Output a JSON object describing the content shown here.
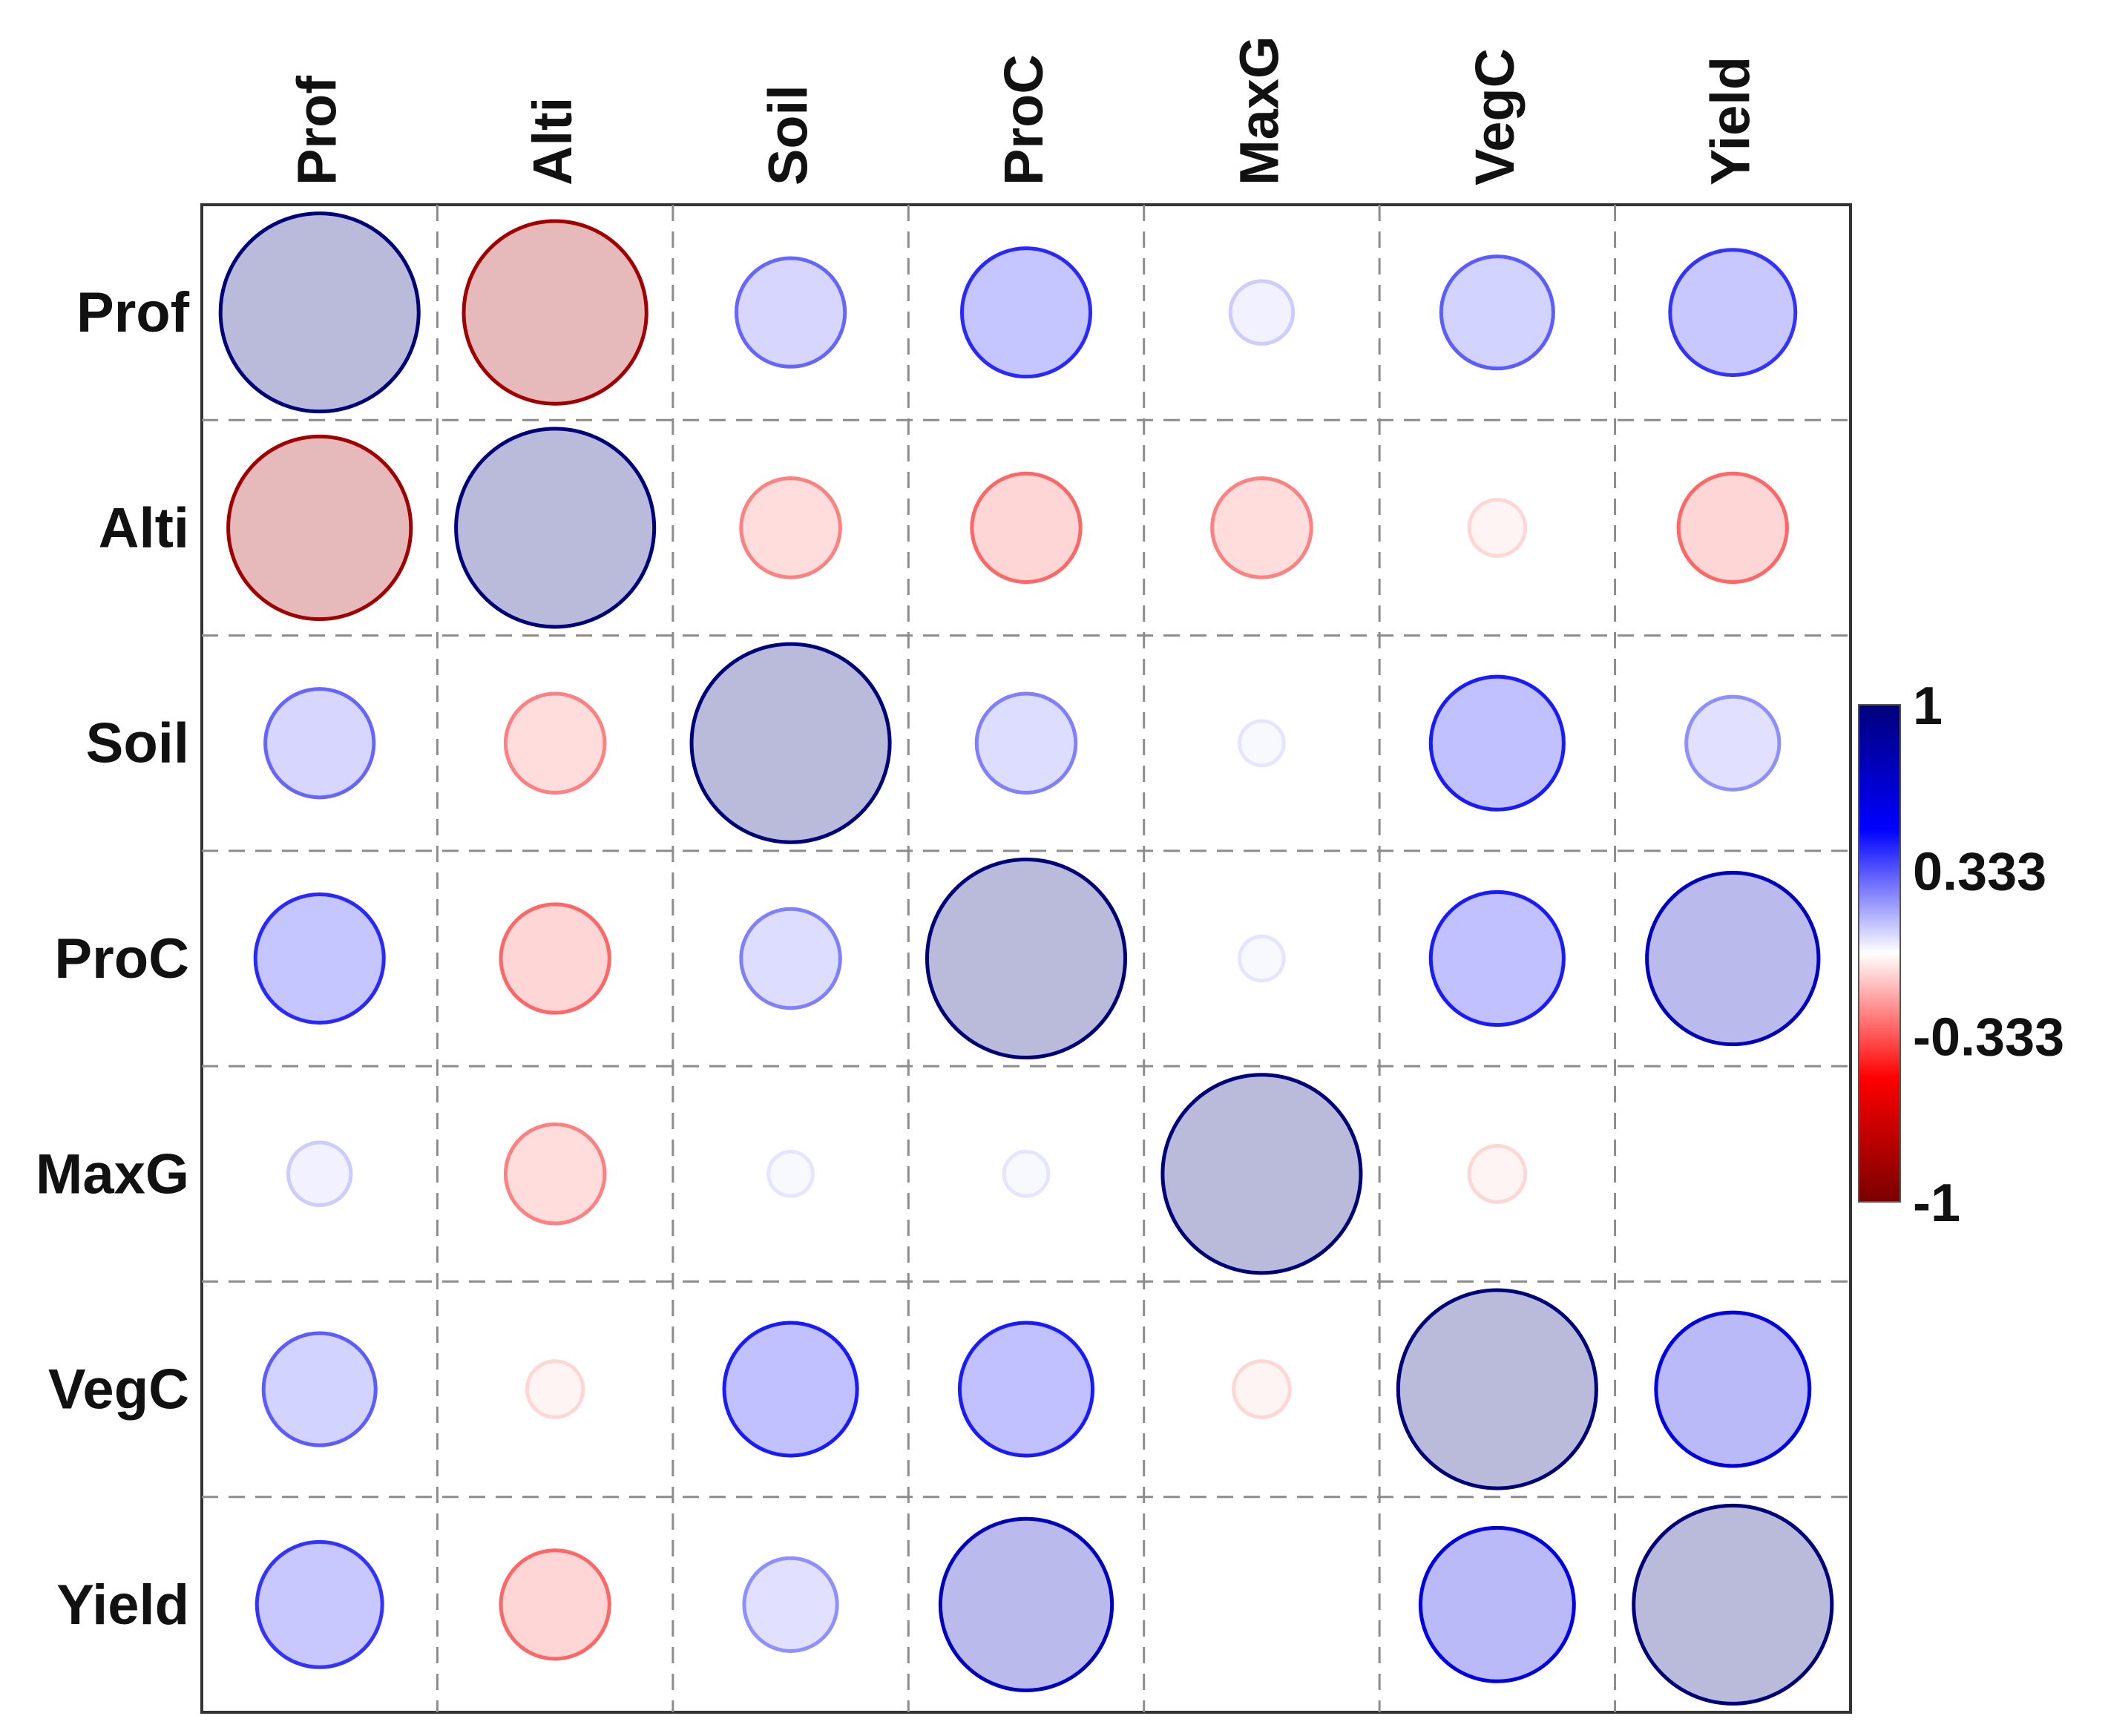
{
  "chart_data": {
    "type": "correlogram",
    "title": "",
    "variables": [
      "Prof",
      "Alti",
      "Soil",
      "ProC",
      "MaxG",
      "VegC",
      "Yield"
    ],
    "matrix": [
      [
        1.0,
        -0.85,
        0.3,
        0.42,
        0.1,
        0.32,
        0.4
      ],
      [
        -0.85,
        1.0,
        -0.25,
        -0.3,
        -0.25,
        -0.08,
        -0.3
      ],
      [
        0.3,
        -0.25,
        1.0,
        0.25,
        0.05,
        0.45,
        0.22
      ],
      [
        0.42,
        -0.3,
        0.25,
        1.0,
        0.05,
        0.45,
        0.75
      ],
      [
        0.1,
        -0.25,
        0.05,
        0.05,
        1.0,
        -0.08,
        0.0
      ],
      [
        0.32,
        -0.08,
        0.45,
        0.45,
        -0.08,
        1.0,
        0.6
      ],
      [
        0.4,
        -0.3,
        0.22,
        0.75,
        0.0,
        0.6,
        1.0
      ]
    ],
    "color_scale": {
      "min": -1,
      "max": 1,
      "ticks": [
        "1",
        "0.333",
        "-0.333",
        "-1"
      ],
      "colors": [
        "#7a0000",
        "#ff0000",
        "#ffffff",
        "#0000ff",
        "#00007a"
      ]
    },
    "grid": "dashed",
    "legend": "right"
  }
}
